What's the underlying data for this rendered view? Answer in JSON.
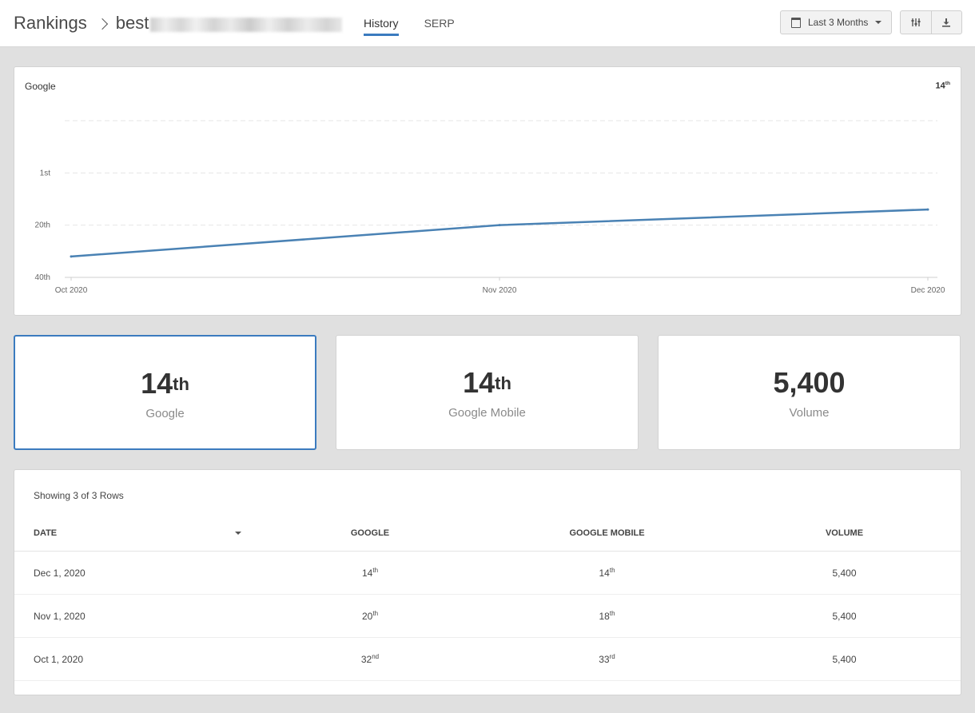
{
  "header": {
    "breadcrumb_root": "Rankings",
    "breadcrumb_current": "best",
    "tabs": [
      {
        "label": "History",
        "active": true
      },
      {
        "label": "SERP",
        "active": false
      }
    ],
    "date_range_label": "Last 3 Months",
    "icons": [
      "calendar-icon",
      "chevron-down-icon",
      "columns-icon",
      "download-icon"
    ]
  },
  "chart": {
    "title": "Google",
    "current_rank": "14",
    "current_rank_suffix": "th"
  },
  "chart_data": {
    "type": "line",
    "title": "Google",
    "x": [
      "Oct 2020",
      "Nov 2020",
      "Dec 2020"
    ],
    "series": [
      {
        "values": [
          32,
          20,
          14
        ]
      }
    ],
    "y_ticks": [
      {
        "label": "1st",
        "value": 0
      },
      {
        "label": "20th",
        "value": 20
      },
      {
        "label": "40th",
        "value": 40
      }
    ],
    "ylim": [
      40,
      -20
    ],
    "y_inverted": true,
    "grid": true,
    "color": "#4a82b4"
  },
  "stats": [
    {
      "value": "14",
      "suffix": "th",
      "label": "Google",
      "selected": true
    },
    {
      "value": "14",
      "suffix": "th",
      "label": "Google Mobile",
      "selected": false
    },
    {
      "value": "5,400",
      "suffix": "",
      "label": "Volume",
      "selected": false
    }
  ],
  "table": {
    "rows_info": "Showing 3 of 3 Rows",
    "columns": [
      "DATE",
      "GOOGLE",
      "GOOGLE MOBILE",
      "VOLUME"
    ],
    "rows": [
      {
        "date": "Dec 1, 2020",
        "google": "14",
        "google_suffix": "th",
        "mobile": "14",
        "mobile_suffix": "th",
        "volume": "5,400"
      },
      {
        "date": "Nov 1, 2020",
        "google": "20",
        "google_suffix": "th",
        "mobile": "18",
        "mobile_suffix": "th",
        "volume": "5,400"
      },
      {
        "date": "Oct 1, 2020",
        "google": "32",
        "google_suffix": "nd",
        "mobile": "33",
        "mobile_suffix": "rd",
        "volume": "5,400"
      }
    ]
  },
  "colors": {
    "accent": "#3b7bbf",
    "line": "#4a82b4",
    "background": "#e0e0e0"
  }
}
